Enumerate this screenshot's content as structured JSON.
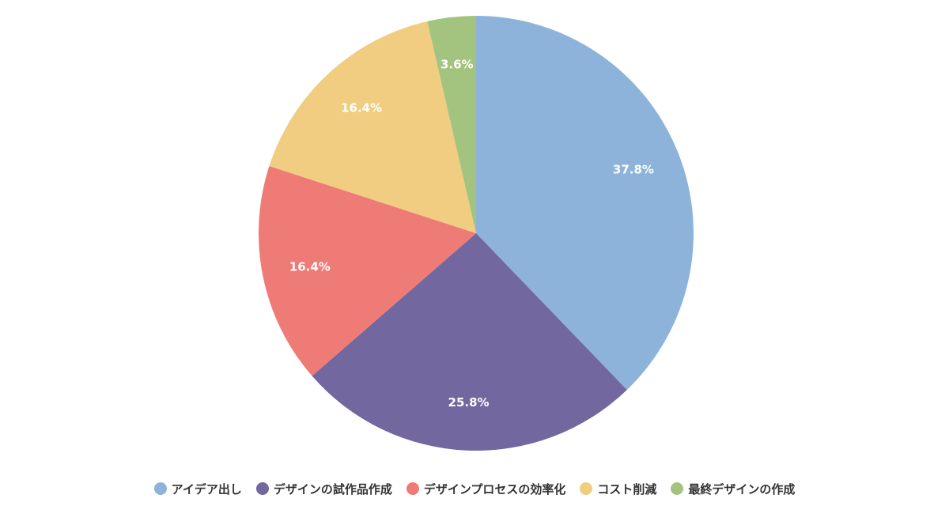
{
  "chart_data": {
    "type": "pie",
    "categories": [
      "アイデア出し",
      "デザインの試作品作成",
      "デザインプロセスの効率化",
      "コスト削減",
      "最終デザインの作成"
    ],
    "values": [
      37.8,
      25.8,
      16.4,
      16.4,
      3.6
    ],
    "data_labels": [
      "37.8%",
      "25.8%",
      "16.4%",
      "16.4%",
      "3.6%"
    ],
    "colors": [
      "#8db3da",
      "#72679e",
      "#ef7b77",
      "#f0cd80",
      "#a2c47e"
    ],
    "legend": {
      "position": "bottom",
      "items": [
        "アイデア出し",
        "デザインの試作品作成",
        "デザインプロセスの効率化",
        "コスト削減",
        "最終デザインの作成"
      ]
    }
  }
}
